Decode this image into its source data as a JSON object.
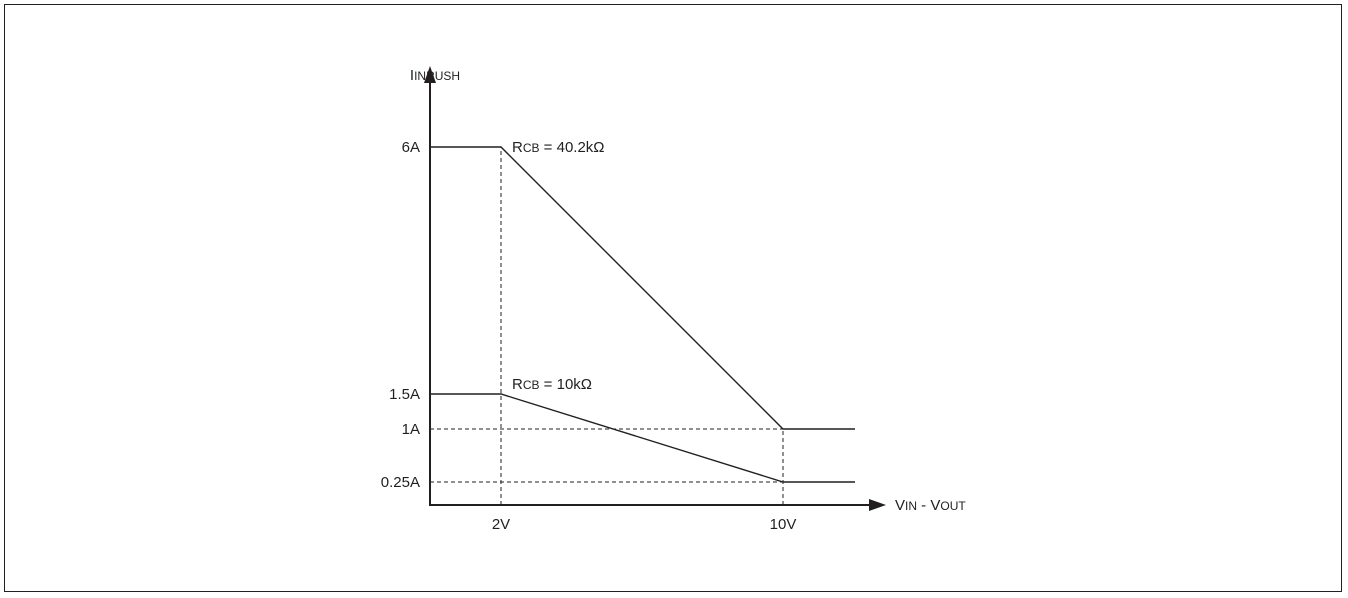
{
  "chart_data": {
    "type": "line",
    "ylabel": {
      "main": "I",
      "sub": "INRUSH"
    },
    "xlabel": {
      "v1": "V",
      "sub1": "IN",
      "sep": " - ",
      "v2": "V",
      "sub2": "OUT"
    },
    "x_ticks": [
      {
        "value": 2,
        "label": "2V"
      },
      {
        "value": 10,
        "label": "10V"
      }
    ],
    "y_ticks": [
      {
        "value": 6,
        "label": "6A"
      },
      {
        "value": 1.5,
        "label": "1.5A"
      },
      {
        "value": 1,
        "label": "1A"
      },
      {
        "value": 0.25,
        "label": "0.25A"
      }
    ],
    "series": [
      {
        "label": {
          "main": "R",
          "sub": "CB",
          "rest": " = 40.2kΩ"
        },
        "points": [
          [
            0,
            6
          ],
          [
            2,
            6
          ],
          [
            10,
            1
          ],
          [
            12,
            1
          ]
        ]
      },
      {
        "label": {
          "main": "R",
          "sub": "CB",
          "rest": " = 10kΩ"
        },
        "points": [
          [
            0,
            1.5
          ],
          [
            2,
            1.5
          ],
          [
            10,
            0.25
          ],
          [
            12,
            0.25
          ]
        ]
      }
    ],
    "reference_lines": [
      {
        "type": "vertical",
        "x": 2,
        "from_y": 0,
        "to_y": 6
      },
      {
        "type": "vertical",
        "x": 10,
        "from_y": 0,
        "to_y": 1
      },
      {
        "type": "horizontal",
        "y": 1,
        "from_x": 0,
        "to_x": 10
      },
      {
        "type": "horizontal",
        "y": 0.25,
        "from_x": 0,
        "to_x": 10
      }
    ],
    "line_color": "#231f20"
  }
}
